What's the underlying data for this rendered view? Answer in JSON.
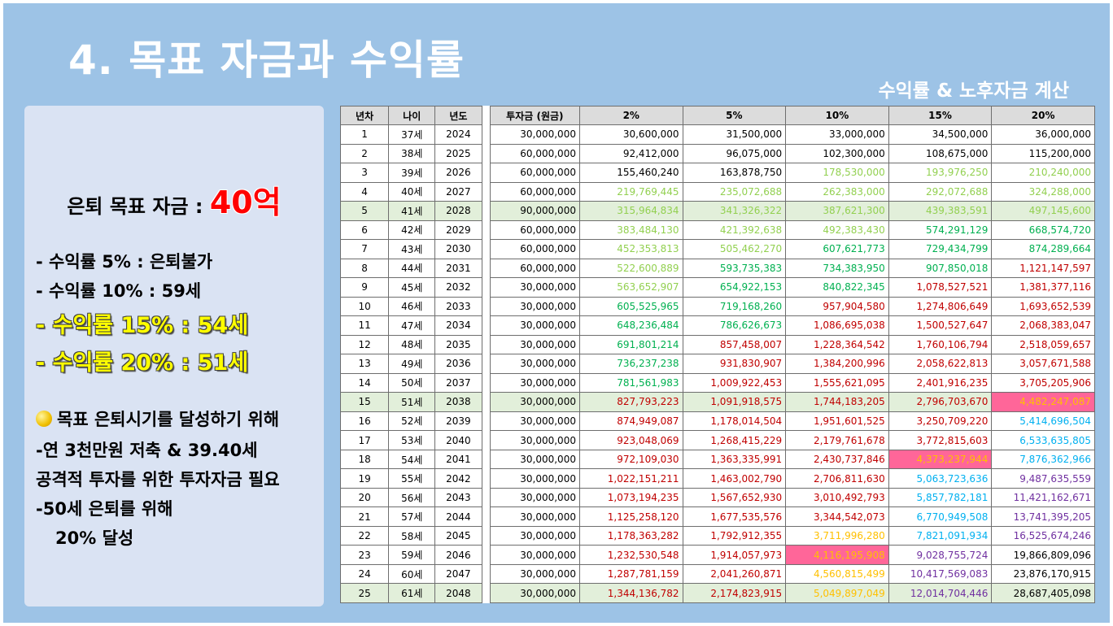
{
  "slide": {
    "title": "4. 목표 자금과 수익률",
    "subtitle": "수익률 & 노후자금 계산"
  },
  "panel": {
    "goal_label": "은퇴 목표 자금 : ",
    "goal_value": "40억",
    "lines": [
      "- 수익률 5% : 은퇴불가",
      "- 수익률 10% : 59세",
      "- 수익률 15% : 54세",
      "- 수익률 20% : 51세"
    ],
    "notes": [
      "목표 은퇴시기를 달성하기 위해",
      "-연 3천만원 저축 & 39.40세",
      "공격적 투자를 위한 투자자금 필요",
      "-50세 은퇴를 위해",
      "20% 달성"
    ],
    "coin_icon": "coin-icon"
  },
  "table": {
    "headers": [
      "년차",
      "나이",
      "년도",
      "투자금 (원금)",
      "2%",
      "5%",
      "10%",
      "15%",
      "20%"
    ],
    "colors": {
      "black": "#000000",
      "lightgreen": "#92d050",
      "green": "#00b050",
      "red": "#c00000",
      "yellow": "#ffc000",
      "blue": "#00b0f0",
      "purple": "#7030a0",
      "pink": "#ff6699"
    },
    "rows": [
      {
        "year": "1",
        "age": "37세",
        "yr": "2024",
        "inv": "30,000,000",
        "v": [
          "30,600,000",
          "31,500,000",
          "33,000,000",
          "34,500,000",
          "36,000,000"
        ],
        "c": [
          "black",
          "black",
          "black",
          "black",
          "black"
        ],
        "hl": false,
        "pk": -1
      },
      {
        "year": "2",
        "age": "38세",
        "yr": "2025",
        "inv": "60,000,000",
        "v": [
          "92,412,000",
          "96,075,000",
          "102,300,000",
          "108,675,000",
          "115,200,000"
        ],
        "c": [
          "black",
          "black",
          "black",
          "black",
          "black"
        ],
        "hl": false,
        "pk": -1
      },
      {
        "year": "3",
        "age": "39세",
        "yr": "2026",
        "inv": "60,000,000",
        "v": [
          "155,460,240",
          "163,878,750",
          "178,530,000",
          "193,976,250",
          "210,240,000"
        ],
        "c": [
          "black",
          "black",
          "lightgreen",
          "lightgreen",
          "lightgreen"
        ],
        "hl": false,
        "pk": -1
      },
      {
        "year": "4",
        "age": "40세",
        "yr": "2027",
        "inv": "60,000,000",
        "v": [
          "219,769,445",
          "235,072,688",
          "262,383,000",
          "292,072,688",
          "324,288,000"
        ],
        "c": [
          "lightgreen",
          "lightgreen",
          "lightgreen",
          "lightgreen",
          "lightgreen"
        ],
        "hl": false,
        "pk": -1
      },
      {
        "year": "5",
        "age": "41세",
        "yr": "2028",
        "inv": "90,000,000",
        "v": [
          "315,964,834",
          "341,326,322",
          "387,621,300",
          "439,383,591",
          "497,145,600"
        ],
        "c": [
          "lightgreen",
          "lightgreen",
          "lightgreen",
          "lightgreen",
          "lightgreen"
        ],
        "hl": true,
        "pk": -1
      },
      {
        "year": "6",
        "age": "42세",
        "yr": "2029",
        "inv": "60,000,000",
        "v": [
          "383,484,130",
          "421,392,638",
          "492,383,430",
          "574,291,129",
          "668,574,720"
        ],
        "c": [
          "lightgreen",
          "lightgreen",
          "lightgreen",
          "green",
          "green"
        ],
        "hl": false,
        "pk": -1
      },
      {
        "year": "7",
        "age": "43세",
        "yr": "2030",
        "inv": "60,000,000",
        "v": [
          "452,353,813",
          "505,462,270",
          "607,621,773",
          "729,434,799",
          "874,289,664"
        ],
        "c": [
          "lightgreen",
          "lightgreen",
          "green",
          "green",
          "green"
        ],
        "hl": false,
        "pk": -1
      },
      {
        "year": "8",
        "age": "44세",
        "yr": "2031",
        "inv": "60,000,000",
        "v": [
          "522,600,889",
          "593,735,383",
          "734,383,950",
          "907,850,018",
          "1,121,147,597"
        ],
        "c": [
          "lightgreen",
          "green",
          "green",
          "green",
          "red"
        ],
        "hl": false,
        "pk": -1
      },
      {
        "year": "9",
        "age": "45세",
        "yr": "2032",
        "inv": "30,000,000",
        "v": [
          "563,652,907",
          "654,922,153",
          "840,822,345",
          "1,078,527,521",
          "1,381,377,116"
        ],
        "c": [
          "lightgreen",
          "green",
          "green",
          "red",
          "red"
        ],
        "hl": false,
        "pk": -1
      },
      {
        "year": "10",
        "age": "46세",
        "yr": "2033",
        "inv": "30,000,000",
        "v": [
          "605,525,965",
          "719,168,260",
          "957,904,580",
          "1,274,806,649",
          "1,693,652,539"
        ],
        "c": [
          "green",
          "green",
          "red",
          "red",
          "red"
        ],
        "hl": false,
        "pk": -1
      },
      {
        "year": "11",
        "age": "47세",
        "yr": "2034",
        "inv": "30,000,000",
        "v": [
          "648,236,484",
          "786,626,673",
          "1,086,695,038",
          "1,500,527,647",
          "2,068,383,047"
        ],
        "c": [
          "green",
          "green",
          "red",
          "red",
          "red"
        ],
        "hl": false,
        "pk": -1
      },
      {
        "year": "12",
        "age": "48세",
        "yr": "2035",
        "inv": "30,000,000",
        "v": [
          "691,801,214",
          "857,458,007",
          "1,228,364,542",
          "1,760,106,794",
          "2,518,059,657"
        ],
        "c": [
          "green",
          "red",
          "red",
          "red",
          "red"
        ],
        "hl": false,
        "pk": -1
      },
      {
        "year": "13",
        "age": "49세",
        "yr": "2036",
        "inv": "30,000,000",
        "v": [
          "736,237,238",
          "931,830,907",
          "1,384,200,996",
          "2,058,622,813",
          "3,057,671,588"
        ],
        "c": [
          "green",
          "red",
          "red",
          "red",
          "red"
        ],
        "hl": false,
        "pk": -1
      },
      {
        "year": "14",
        "age": "50세",
        "yr": "2037",
        "inv": "30,000,000",
        "v": [
          "781,561,983",
          "1,009,922,453",
          "1,555,621,095",
          "2,401,916,235",
          "3,705,205,906"
        ],
        "c": [
          "green",
          "red",
          "red",
          "red",
          "red"
        ],
        "hl": false,
        "pk": -1
      },
      {
        "year": "15",
        "age": "51세",
        "yr": "2038",
        "inv": "30,000,000",
        "v": [
          "827,793,223",
          "1,091,918,575",
          "1,744,183,205",
          "2,796,703,670",
          "4,482,247,087"
        ],
        "c": [
          "red",
          "red",
          "red",
          "red",
          "yellow"
        ],
        "hl": true,
        "pk": 4
      },
      {
        "year": "16",
        "age": "52세",
        "yr": "2039",
        "inv": "30,000,000",
        "v": [
          "874,949,087",
          "1,178,014,504",
          "1,951,601,525",
          "3,250,709,220",
          "5,414,696,504"
        ],
        "c": [
          "red",
          "red",
          "red",
          "red",
          "blue"
        ],
        "hl": false,
        "pk": -1
      },
      {
        "year": "17",
        "age": "53세",
        "yr": "2040",
        "inv": "30,000,000",
        "v": [
          "923,048,069",
          "1,268,415,229",
          "2,179,761,678",
          "3,772,815,603",
          "6,533,635,805"
        ],
        "c": [
          "red",
          "red",
          "red",
          "red",
          "blue"
        ],
        "hl": false,
        "pk": -1
      },
      {
        "year": "18",
        "age": "54세",
        "yr": "2041",
        "inv": "30,000,000",
        "v": [
          "972,109,030",
          "1,363,335,991",
          "2,430,737,846",
          "4,373,237,944",
          "7,876,362,966"
        ],
        "c": [
          "red",
          "red",
          "red",
          "yellow",
          "blue"
        ],
        "hl": false,
        "pk": 3
      },
      {
        "year": "19",
        "age": "55세",
        "yr": "2042",
        "inv": "30,000,000",
        "v": [
          "1,022,151,211",
          "1,463,002,790",
          "2,706,811,630",
          "5,063,723,636",
          "9,487,635,559"
        ],
        "c": [
          "red",
          "red",
          "red",
          "blue",
          "purple"
        ],
        "hl": false,
        "pk": -1
      },
      {
        "year": "20",
        "age": "56세",
        "yr": "2043",
        "inv": "30,000,000",
        "v": [
          "1,073,194,235",
          "1,567,652,930",
          "3,010,492,793",
          "5,857,782,181",
          "11,421,162,671"
        ],
        "c": [
          "red",
          "red",
          "red",
          "blue",
          "purple"
        ],
        "hl": false,
        "pk": -1
      },
      {
        "year": "21",
        "age": "57세",
        "yr": "2044",
        "inv": "30,000,000",
        "v": [
          "1,125,258,120",
          "1,677,535,576",
          "3,344,542,073",
          "6,770,949,508",
          "13,741,395,205"
        ],
        "c": [
          "red",
          "red",
          "red",
          "blue",
          "purple"
        ],
        "hl": false,
        "pk": -1
      },
      {
        "year": "22",
        "age": "58세",
        "yr": "2045",
        "inv": "30,000,000",
        "v": [
          "1,178,363,282",
          "1,792,912,355",
          "3,711,996,280",
          "7,821,091,934",
          "16,525,674,246"
        ],
        "c": [
          "red",
          "red",
          "yellow",
          "blue",
          "purple"
        ],
        "hl": false,
        "pk": -1
      },
      {
        "year": "23",
        "age": "59세",
        "yr": "2046",
        "inv": "30,000,000",
        "v": [
          "1,232,530,548",
          "1,914,057,973",
          "4,116,195,908",
          "9,028,755,724",
          "19,866,809,096"
        ],
        "c": [
          "red",
          "red",
          "yellow",
          "purple",
          "black"
        ],
        "hl": false,
        "pk": 2
      },
      {
        "year": "24",
        "age": "60세",
        "yr": "2047",
        "inv": "30,000,000",
        "v": [
          "1,287,781,159",
          "2,041,260,871",
          "4,560,815,499",
          "10,417,569,083",
          "23,876,170,915"
        ],
        "c": [
          "red",
          "red",
          "yellow",
          "purple",
          "black"
        ],
        "hl": false,
        "pk": -1
      },
      {
        "year": "25",
        "age": "61세",
        "yr": "2048",
        "inv": "30,000,000",
        "v": [
          "1,344,136,782",
          "2,174,823,915",
          "5,049,897,049",
          "12,014,704,446",
          "28,687,405,098"
        ],
        "c": [
          "red",
          "red",
          "yellow",
          "purple",
          "black"
        ],
        "hl": true,
        "pk": -1
      }
    ]
  }
}
